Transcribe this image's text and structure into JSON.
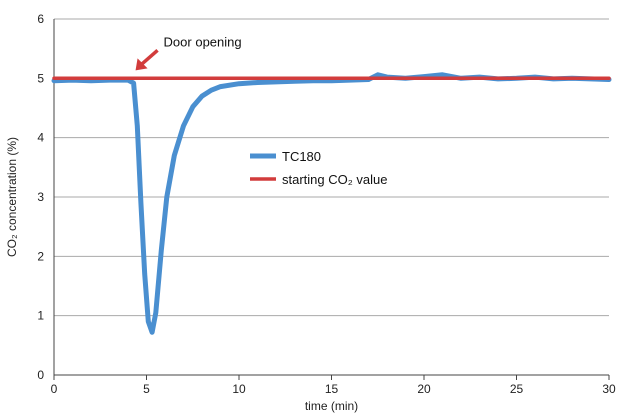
{
  "chart_data": {
    "type": "line",
    "xlabel": "time (min)",
    "ylabel": "CO₂ concentration (%)",
    "xlim": [
      0,
      30
    ],
    "ylim": [
      0,
      6
    ],
    "xticks": [
      "0",
      "5",
      "10",
      "15",
      "20",
      "25",
      "30"
    ],
    "yticks": [
      "0",
      "1",
      "2",
      "3",
      "4",
      "5",
      "6"
    ],
    "grid": "horizontal",
    "legend_position": "center",
    "series": [
      {
        "name": "TC180",
        "color": "#4a8fd0",
        "x": [
          0,
          1,
          2,
          3,
          4,
          4.3,
          4.5,
          4.7,
          4.9,
          5.1,
          5.3,
          5.5,
          5.8,
          6.1,
          6.5,
          7,
          7.5,
          8,
          8.5,
          9,
          10,
          11,
          12,
          13,
          14,
          15,
          16,
          17,
          17.5,
          18,
          19,
          20,
          21,
          22,
          23,
          24,
          25,
          26,
          27,
          28,
          29,
          30
        ],
        "values": [
          4.96,
          4.97,
          4.96,
          4.97,
          4.97,
          4.92,
          4.2,
          2.9,
          1.7,
          0.9,
          0.72,
          1.05,
          2.1,
          3.0,
          3.7,
          4.2,
          4.52,
          4.7,
          4.8,
          4.86,
          4.91,
          4.93,
          4.94,
          4.95,
          4.96,
          4.96,
          4.97,
          4.98,
          5.06,
          5.02,
          5.0,
          5.03,
          5.06,
          5.0,
          5.02,
          4.99,
          5.0,
          5.02,
          4.99,
          5.0,
          4.99,
          4.98
        ]
      },
      {
        "name": "starting CO₂ value",
        "color": "#d23c3c",
        "x": [
          0,
          30
        ],
        "values": [
          5.0,
          5.0
        ]
      }
    ],
    "annotation": {
      "text": "Door opening",
      "x": 4.3,
      "y": 5.0
    }
  }
}
